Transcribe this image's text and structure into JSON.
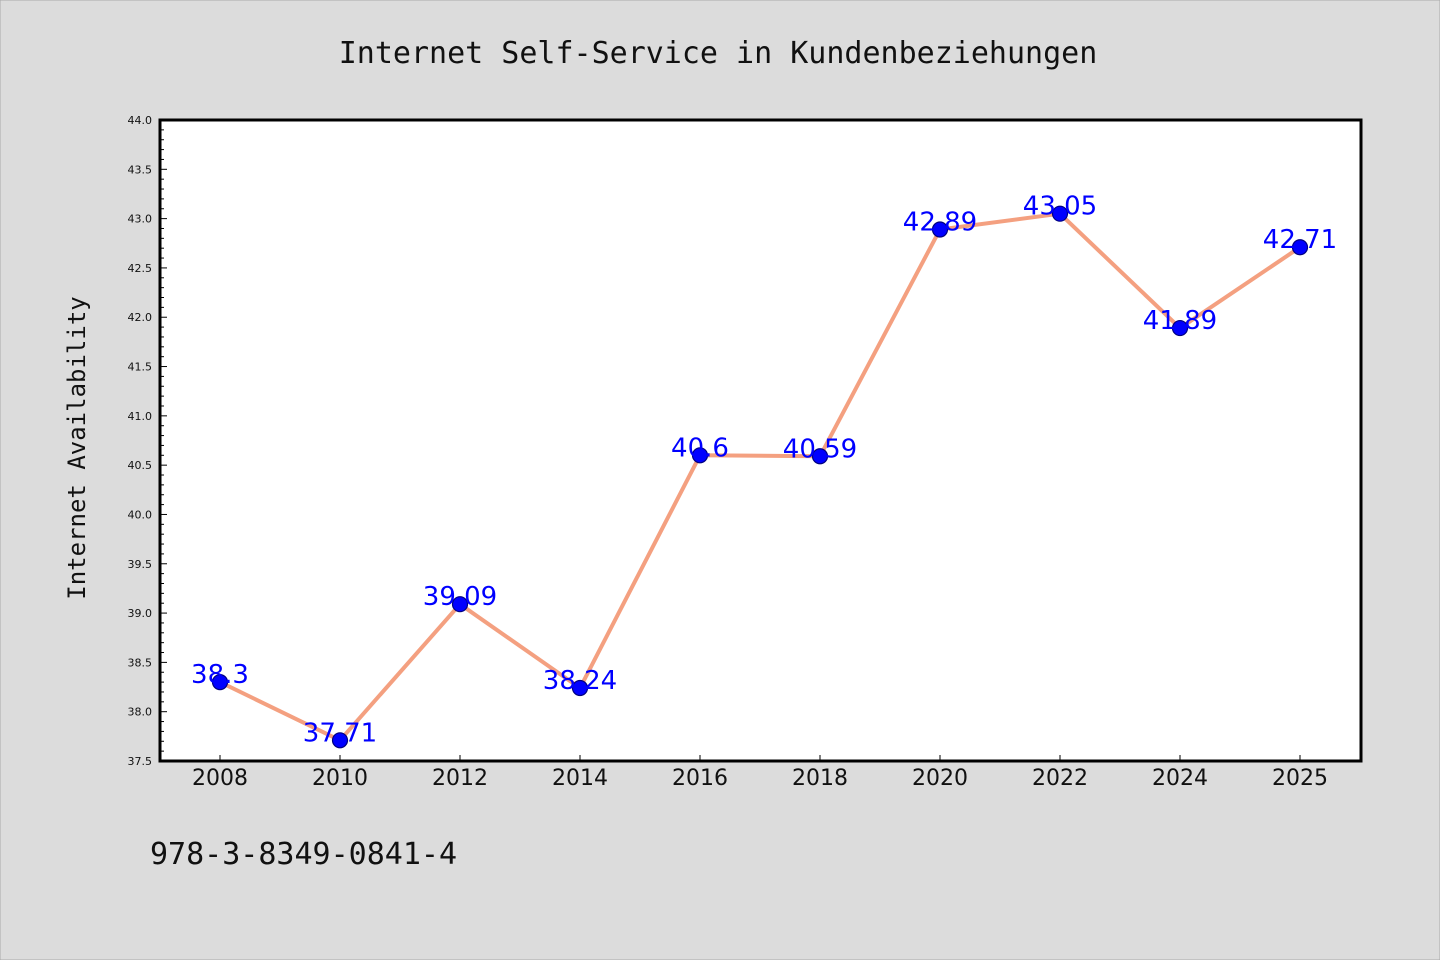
{
  "chart_data": {
    "type": "line",
    "title": "Internet Self-Service in Kundenbeziehungen",
    "xlabel": "",
    "ylabel": "Internet Availability",
    "categories": [
      "2008",
      "2010",
      "2012",
      "2014",
      "2016",
      "2018",
      "2020",
      "2022",
      "2024",
      "2025"
    ],
    "series": [
      {
        "values": [
          38.3,
          37.71,
          39.09,
          38.24,
          40.6,
          40.59,
          42.89,
          43.05,
          41.89,
          42.71
        ],
        "data_labels": [
          "38.3",
          "37.71",
          "39.09",
          "38.24",
          "40.6",
          "40.59",
          "42.89",
          "43.05",
          "41.89",
          "42.71"
        ]
      }
    ],
    "ylim": [
      37.5,
      44.0
    ],
    "yticks": [
      "37.5",
      "38.0",
      "38.5",
      "39.0",
      "39.5",
      "40.0",
      "40.5",
      "41.0",
      "41.5",
      "42.0",
      "42.5",
      "43.0",
      "43.5",
      "44.0"
    ],
    "grid": false,
    "colors": {
      "line": "#f4a080",
      "marker": "#0000ff",
      "marker_edge": "#000080",
      "labels": "#0000ff"
    }
  },
  "footer_text": "978-3-8349-0841-4"
}
